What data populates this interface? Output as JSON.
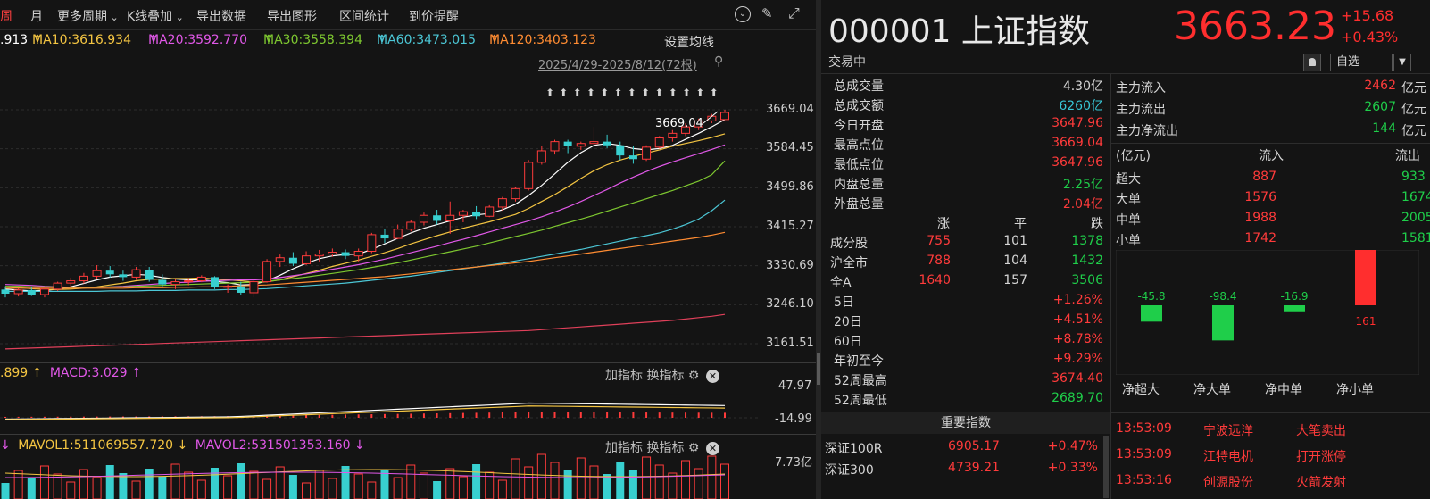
{
  "toolbar": {
    "items": [
      "周",
      "月",
      "更多周期",
      "K线叠加",
      "导出数据",
      "导出图形",
      "区间统计",
      "到价提醒"
    ],
    "active_index": 0
  },
  "ma": {
    "prefix": ".913",
    "items": [
      {
        "label": "MA10:3616.934",
        "color": "#f4c542",
        "arrow": "↑"
      },
      {
        "label": "MA20:3592.770",
        "color": "#e158e8",
        "arrow": "↑"
      },
      {
        "label": "MA30:3558.394",
        "color": "#7ec830",
        "arrow": "↑"
      },
      {
        "label": "MA60:3473.015",
        "color": "#4cc7d6",
        "arrow": "↑"
      },
      {
        "label": "MA120:3403.123",
        "color": "#ff8c32",
        "arrow": "↑"
      }
    ],
    "settings_label": "设置均线"
  },
  "range_label": "2025/4/29-2025/8/12(72根)",
  "chart_data": {
    "type": "candlestick",
    "title": "000001 上证指数",
    "y_ticks": [
      "3669.04",
      "3584.45",
      "3499.86",
      "3415.27",
      "3330.69",
      "3246.10",
      "3161.51"
    ],
    "ylim": [
      3161.51,
      3669.04
    ],
    "high_annotation": "3669.04",
    "candles": [
      [
        3279,
        3286,
        3262,
        3270
      ],
      [
        3270,
        3282,
        3264,
        3278
      ],
      [
        3278,
        3285,
        3265,
        3268
      ],
      [
        3268,
        3281,
        3262,
        3280
      ],
      [
        3280,
        3296,
        3276,
        3293
      ],
      [
        3293,
        3305,
        3286,
        3298
      ],
      [
        3298,
        3315,
        3292,
        3308
      ],
      [
        3308,
        3332,
        3302,
        3320
      ],
      [
        3320,
        3330,
        3305,
        3312
      ],
      [
        3312,
        3320,
        3298,
        3306
      ],
      [
        3306,
        3328,
        3300,
        3322
      ],
      [
        3322,
        3328,
        3296,
        3300
      ],
      [
        3300,
        3312,
        3285,
        3290
      ],
      [
        3290,
        3302,
        3280,
        3296
      ],
      [
        3296,
        3304,
        3288,
        3298
      ],
      [
        3298,
        3310,
        3295,
        3306
      ],
      [
        3306,
        3308,
        3280,
        3284
      ],
      [
        3284,
        3290,
        3272,
        3286
      ],
      [
        3286,
        3296,
        3268,
        3272
      ],
      [
        3272,
        3300,
        3262,
        3296
      ],
      [
        3296,
        3345,
        3294,
        3340
      ],
      [
        3340,
        3355,
        3328,
        3348
      ],
      [
        3348,
        3360,
        3330,
        3335
      ],
      [
        3335,
        3362,
        3332,
        3352
      ],
      [
        3352,
        3365,
        3340,
        3356
      ],
      [
        3356,
        3368,
        3350,
        3360
      ],
      [
        3360,
        3366,
        3345,
        3352
      ],
      [
        3352,
        3368,
        3340,
        3362
      ],
      [
        3362,
        3402,
        3358,
        3398
      ],
      [
        3398,
        3410,
        3380,
        3390
      ],
      [
        3390,
        3420,
        3388,
        3410
      ],
      [
        3410,
        3430,
        3405,
        3425
      ],
      [
        3425,
        3446,
        3418,
        3440
      ],
      [
        3440,
        3452,
        3420,
        3428
      ],
      [
        3428,
        3470,
        3400,
        3440
      ],
      [
        3440,
        3452,
        3425,
        3448
      ],
      [
        3448,
        3460,
        3432,
        3438
      ],
      [
        3438,
        3462,
        3436,
        3458
      ],
      [
        3458,
        3480,
        3450,
        3476
      ],
      [
        3476,
        3502,
        3470,
        3498
      ],
      [
        3498,
        3560,
        3494,
        3555
      ],
      [
        3555,
        3590,
        3550,
        3580
      ],
      [
        3580,
        3604,
        3572,
        3600
      ],
      [
        3600,
        3604,
        3575,
        3590
      ],
      [
        3590,
        3600,
        3582,
        3596
      ],
      [
        3596,
        3632,
        3590,
        3600
      ],
      [
        3600,
        3615,
        3586,
        3592
      ],
      [
        3592,
        3600,
        3560,
        3570
      ],
      [
        3570,
        3590,
        3552,
        3562
      ],
      [
        3562,
        3592,
        3558,
        3588
      ],
      [
        3588,
        3612,
        3585,
        3608
      ],
      [
        3608,
        3625,
        3600,
        3618
      ],
      [
        3618,
        3640,
        3612,
        3632
      ],
      [
        3632,
        3650,
        3625,
        3645
      ],
      [
        3645,
        3660,
        3640,
        3655
      ],
      [
        3648,
        3669.04,
        3647.96,
        3663.23
      ]
    ],
    "ma_series": [
      {
        "name": "MA5",
        "color": "#ffffff",
        "values": [
          3280,
          3278,
          3276,
          3277,
          3280,
          3285,
          3292,
          3300,
          3306,
          3309,
          3312,
          3310,
          3305,
          3302,
          3300,
          3300,
          3297,
          3294,
          3289,
          3290,
          3298,
          3310,
          3324,
          3336,
          3346,
          3352,
          3355,
          3356,
          3366,
          3378,
          3390,
          3402,
          3412,
          3420,
          3428,
          3436,
          3441,
          3444,
          3452,
          3464,
          3483,
          3505,
          3530,
          3555,
          3576,
          3592,
          3596,
          3592,
          3585,
          3582,
          3585,
          3592,
          3605,
          3618,
          3632,
          3648
        ]
      },
      {
        "name": "MA10",
        "color": "#f4c542",
        "values": [
          3285,
          3283,
          3281,
          3279,
          3279,
          3280,
          3282,
          3285,
          3289,
          3293,
          3298,
          3301,
          3302,
          3303,
          3303,
          3304,
          3302,
          3300,
          3298,
          3295,
          3296,
          3300,
          3307,
          3314,
          3321,
          3329,
          3336,
          3343,
          3351,
          3359,
          3368,
          3378,
          3387,
          3396,
          3404,
          3412,
          3419,
          3426,
          3434,
          3442,
          3455,
          3470,
          3485,
          3502,
          3520,
          3537,
          3550,
          3560,
          3568,
          3575,
          3582,
          3590,
          3596,
          3602,
          3609,
          3617
        ]
      },
      {
        "name": "MA20",
        "color": "#e158e8",
        "values": [
          3290,
          3289,
          3288,
          3286,
          3285,
          3284,
          3284,
          3284,
          3285,
          3286,
          3288,
          3290,
          3292,
          3294,
          3295,
          3297,
          3298,
          3299,
          3300,
          3300,
          3302,
          3305,
          3309,
          3313,
          3318,
          3323,
          3328,
          3333,
          3339,
          3345,
          3352,
          3359,
          3366,
          3373,
          3381,
          3388,
          3396,
          3404,
          3412,
          3420,
          3428,
          3437,
          3447,
          3458,
          3470,
          3483,
          3496,
          3510,
          3523,
          3535,
          3546,
          3556,
          3565,
          3574,
          3583,
          3593
        ]
      },
      {
        "name": "MA30",
        "color": "#7ec830",
        "values": [
          3286,
          3286,
          3285,
          3285,
          3285,
          3284,
          3284,
          3284,
          3285,
          3285,
          3286,
          3287,
          3288,
          3289,
          3290,
          3291,
          3292,
          3293,
          3294,
          3295,
          3297,
          3300,
          3303,
          3306,
          3310,
          3314,
          3318,
          3322,
          3327,
          3332,
          3337,
          3343,
          3349,
          3355,
          3361,
          3367,
          3373,
          3380,
          3387,
          3394,
          3401,
          3408,
          3416,
          3424,
          3432,
          3440,
          3449,
          3458,
          3467,
          3476,
          3485,
          3494,
          3504,
          3514,
          3528,
          3558
        ]
      },
      {
        "name": "MA60",
        "color": "#4cc7d6",
        "values": [
          3275,
          3275,
          3275,
          3275,
          3275,
          3275,
          3275,
          3275,
          3276,
          3276,
          3276,
          3277,
          3277,
          3277,
          3278,
          3278,
          3278,
          3279,
          3279,
          3280,
          3281,
          3283,
          3285,
          3287,
          3289,
          3291,
          3293,
          3296,
          3299,
          3302,
          3305,
          3308,
          3312,
          3316,
          3320,
          3324,
          3328,
          3332,
          3336,
          3341,
          3346,
          3351,
          3356,
          3361,
          3366,
          3372,
          3378,
          3384,
          3390,
          3396,
          3402,
          3410,
          3420,
          3432,
          3450,
          3473
        ]
      },
      {
        "name": "MA120",
        "color": "#ff8c32",
        "values": [
          3282,
          3282,
          3282,
          3282,
          3282,
          3282,
          3282,
          3282,
          3282,
          3282,
          3283,
          3283,
          3283,
          3284,
          3284,
          3285,
          3285,
          3286,
          3287,
          3288,
          3289,
          3291,
          3293,
          3295,
          3297,
          3299,
          3301,
          3303,
          3305,
          3307,
          3310,
          3313,
          3316,
          3319,
          3322,
          3325,
          3328,
          3331,
          3334,
          3337,
          3340,
          3344,
          3348,
          3352,
          3356,
          3360,
          3364,
          3368,
          3372,
          3376,
          3380,
          3384,
          3388,
          3392,
          3397,
          3403
        ]
      },
      {
        "name": "MA250",
        "color": "#e0405a",
        "values": [
          3150,
          3151,
          3152,
          3153,
          3154,
          3155,
          3156,
          3157,
          3158,
          3159,
          3160,
          3161,
          3162,
          3163,
          3164,
          3165,
          3166,
          3167,
          3168,
          3169,
          3170,
          3171,
          3172,
          3173,
          3174,
          3175,
          3176,
          3177,
          3178,
          3179,
          3180,
          3181,
          3182,
          3183,
          3184,
          3185,
          3186,
          3187,
          3188,
          3189,
          3190,
          3192,
          3194,
          3196,
          3198,
          3200,
          3202,
          3204,
          3206,
          3208,
          3210,
          3212,
          3215,
          3218,
          3221,
          3225
        ]
      }
    ],
    "macd_ticks": [
      "47.97",
      "-14.99"
    ],
    "vol_ticks": [
      "7.73亿"
    ]
  },
  "macd": {
    "prefix": ".899",
    "label": "MACD:3.029",
    "arrow": "↑",
    "add": "加指标",
    "switch": "换指标"
  },
  "vol": {
    "prefix": "↓",
    "mavol1": "MAVOL1:511069557.720",
    "arrow1": "↓",
    "mavol2": "MAVOL2:531501353.160",
    "arrow2": "↓",
    "add": "加指标",
    "switch": "换指标"
  },
  "quote": {
    "code_name": "000001 上证指数",
    "price": "3663.23",
    "change": "+15.68",
    "change_pct": "+0.43%",
    "status": "交易中",
    "watch_label": "自选"
  },
  "stats": [
    {
      "label": "总成交量",
      "value": "4.30亿",
      "color": "#d6d6d6"
    },
    {
      "label": "总成交额",
      "value": "6260亿",
      "color": "#38c8d8"
    },
    {
      "label": "今日开盘",
      "value": "3647.96",
      "color": "#ff3b3b"
    },
    {
      "label": "最高点位",
      "value": "3669.04",
      "color": "#ff3b3b"
    },
    {
      "label": "最低点位",
      "value": "3647.96",
      "color": "#ff3b3b"
    },
    {
      "label": "内盘总量",
      "value": "2.25亿",
      "color": "#1fce4a"
    },
    {
      "label": "外盘总量",
      "value": "2.04亿",
      "color": "#ff3b3b"
    }
  ],
  "breadth": {
    "headers": [
      "涨",
      "平",
      "跌"
    ],
    "rows": [
      {
        "label": "成分股",
        "up": "755",
        "flat": "101",
        "down": "1378"
      },
      {
        "label": "沪全市",
        "up": "788",
        "flat": "104",
        "down": "1432"
      },
      {
        "label": "全A",
        "up": "1640",
        "flat": "157",
        "down": "3506"
      }
    ]
  },
  "periods": [
    {
      "label": "5日",
      "value": "+1.26%"
    },
    {
      "label": "20日",
      "value": "+4.51%"
    },
    {
      "label": "60日",
      "value": "+8.78%"
    },
    {
      "label": "年初至今",
      "value": "+9.29%"
    },
    {
      "label": "52周最高",
      "value": "3674.40",
      "color": "#ff3b3b"
    },
    {
      "label": "52周最低",
      "value": "2689.70",
      "color": "#1fce4a"
    }
  ],
  "indices_header": "重要指数",
  "indices": [
    {
      "name": "深证100R",
      "price": "6905.17",
      "pct": "+0.47%"
    },
    {
      "name": "深证300",
      "price": "4739.21",
      "pct": "+0.33%"
    }
  ],
  "flow": {
    "in": {
      "label": "主力流入",
      "value": "2462",
      "unit": "亿元"
    },
    "out": {
      "label": "主力流出",
      "value": "2607",
      "unit": "亿元"
    },
    "net": {
      "label": "主力净流出",
      "value": "144",
      "unit": "亿元"
    },
    "table_unit": "(亿元)",
    "col_in": "流入",
    "col_out": "流出",
    "rows": [
      {
        "label": "超大",
        "in": "887",
        "out": "933"
      },
      {
        "label": "大单",
        "in": "1576",
        "out": "1674"
      },
      {
        "label": "中单",
        "in": "1988",
        "out": "2005"
      },
      {
        "label": "小单",
        "in": "1742",
        "out": "1581"
      }
    ],
    "net_bars": [
      {
        "label": "净超大",
        "value": -45.8,
        "text": "-45.8"
      },
      {
        "label": "净大单",
        "value": -98.4,
        "text": "-98.4"
      },
      {
        "label": "净中单",
        "value": -16.9,
        "text": "-16.9"
      },
      {
        "label": "净小单",
        "value": 161,
        "text": "161"
      }
    ]
  },
  "ticks": [
    {
      "time": "13:53:09",
      "stock": "宁波远洋",
      "event": "大笔卖出"
    },
    {
      "time": "13:53:09",
      "stock": "江特电机",
      "event": "打开涨停"
    },
    {
      "time": "13:53:16",
      "stock": "创源股份",
      "event": "火箭发射"
    }
  ],
  "colors": {
    "up": "#ff3b3b",
    "down": "#1fce4a",
    "flow_up": "#ff2e2e",
    "flow_down": "#1fce4a"
  }
}
